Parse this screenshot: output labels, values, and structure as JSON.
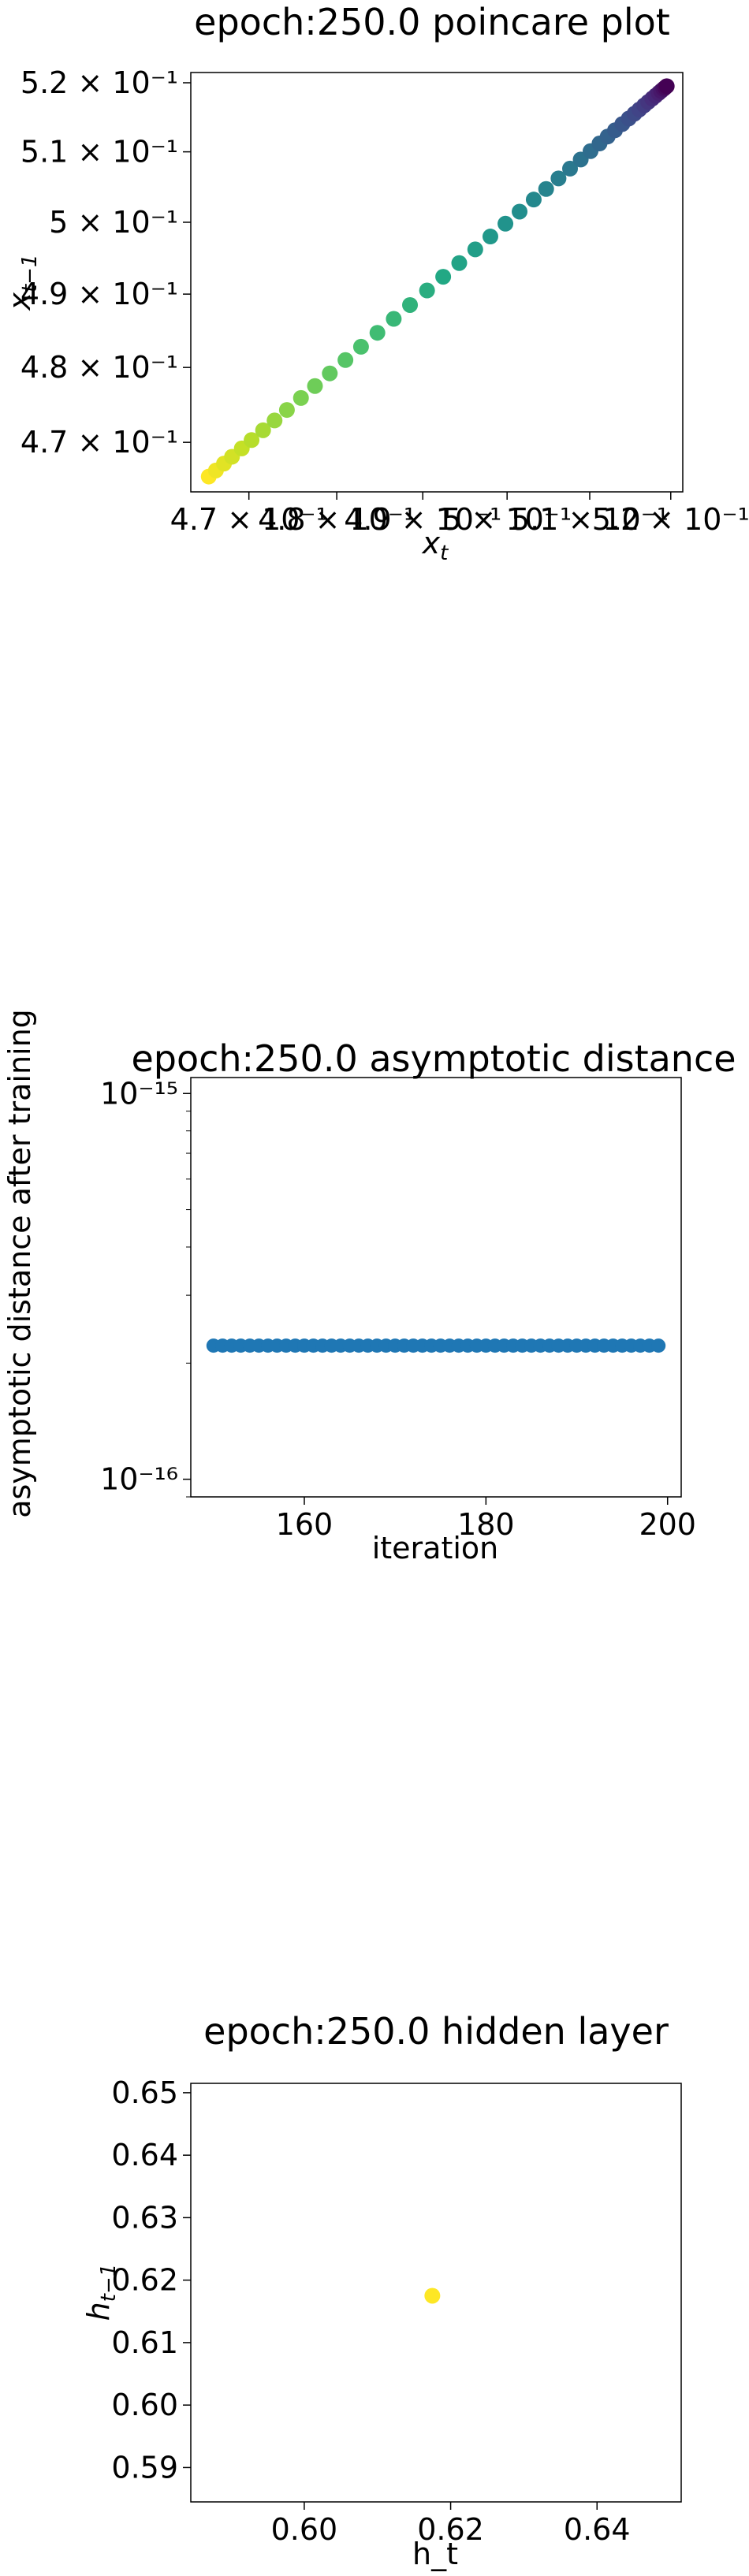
{
  "chart_data": [
    {
      "type": "scatter",
      "title": "epoch:250.0 poincare plot",
      "xlabel": "x_t",
      "ylabel": "x_{t-1}",
      "xscale": "log",
      "yscale": "log",
      "xlim": [
        0.4635,
        0.5215
      ],
      "ylim": [
        0.4635,
        0.5215
      ],
      "x_tick_labels": [
        "4.7 × 10⁻¹",
        "4.8 × 10⁻¹",
        "4.9 × 10⁻¹",
        "5 × 10⁻¹",
        "5.1 × 10⁻¹",
        "5.2 × 10⁻¹"
      ],
      "y_tick_labels": [
        "4.7 × 10⁻¹",
        "4.8 × 10⁻¹",
        "4.9 × 10⁻¹",
        "5 × 10⁻¹",
        "5.1 × 10⁻¹",
        "5.2 × 10⁻¹"
      ],
      "tick_values": [
        0.47,
        0.48,
        0.49,
        0.5,
        0.51,
        0.52
      ],
      "colormap": "viridis (reversed along the diagonal: yellow at low values, purple at high values)",
      "points": [
        {
          "x": 0.4655,
          "y": 0.4655
        },
        {
          "x": 0.4663,
          "y": 0.4663
        },
        {
          "x": 0.4672,
          "y": 0.4672
        },
        {
          "x": 0.4681,
          "y": 0.4681
        },
        {
          "x": 0.4692,
          "y": 0.4692
        },
        {
          "x": 0.4703,
          "y": 0.4703
        },
        {
          "x": 0.4716,
          "y": 0.4716
        },
        {
          "x": 0.4729,
          "y": 0.4729
        },
        {
          "x": 0.4743,
          "y": 0.4743
        },
        {
          "x": 0.4759,
          "y": 0.4759
        },
        {
          "x": 0.4775,
          "y": 0.4775
        },
        {
          "x": 0.4792,
          "y": 0.4792
        },
        {
          "x": 0.481,
          "y": 0.481
        },
        {
          "x": 0.4828,
          "y": 0.4828
        },
        {
          "x": 0.4847,
          "y": 0.4847
        },
        {
          "x": 0.4866,
          "y": 0.4866
        },
        {
          "x": 0.4885,
          "y": 0.4885
        },
        {
          "x": 0.4905,
          "y": 0.4905
        },
        {
          "x": 0.4924,
          "y": 0.4924
        },
        {
          "x": 0.4943,
          "y": 0.4943
        },
        {
          "x": 0.4962,
          "y": 0.4962
        },
        {
          "x": 0.498,
          "y": 0.498
        },
        {
          "x": 0.4998,
          "y": 0.4998
        },
        {
          "x": 0.5015,
          "y": 0.5015
        },
        {
          "x": 0.5032,
          "y": 0.5032
        },
        {
          "x": 0.5047,
          "y": 0.5047
        },
        {
          "x": 0.5062,
          "y": 0.5062
        },
        {
          "x": 0.5076,
          "y": 0.5076
        },
        {
          "x": 0.5089,
          "y": 0.5089
        },
        {
          "x": 0.5101,
          "y": 0.5101
        },
        {
          "x": 0.5112,
          "y": 0.5112
        },
        {
          "x": 0.5122,
          "y": 0.5122
        },
        {
          "x": 0.5131,
          "y": 0.5131
        },
        {
          "x": 0.514,
          "y": 0.514
        },
        {
          "x": 0.5148,
          "y": 0.5148
        },
        {
          "x": 0.5155,
          "y": 0.5155
        },
        {
          "x": 0.5161,
          "y": 0.5161
        },
        {
          "x": 0.5167,
          "y": 0.5167
        },
        {
          "x": 0.5172,
          "y": 0.5172
        },
        {
          "x": 0.5177,
          "y": 0.5177
        },
        {
          "x": 0.5181,
          "y": 0.5181
        },
        {
          "x": 0.5185,
          "y": 0.5185
        },
        {
          "x": 0.5188,
          "y": 0.5188
        },
        {
          "x": 0.5191,
          "y": 0.5191
        },
        {
          "x": 0.5193,
          "y": 0.5193
        },
        {
          "x": 0.5195,
          "y": 0.5195
        }
      ]
    },
    {
      "type": "scatter",
      "title": "epoch:250.0 asymptotic distance",
      "xlabel": "iteration",
      "ylabel": "asymptotic distance after training",
      "yscale": "log",
      "xlim": [
        147.5,
        201.5
      ],
      "ylim": [
        9e-17,
        1.1e-15
      ],
      "x_ticks": [
        160,
        180,
        200
      ],
      "x_tick_labels": [
        "160",
        "180",
        "200"
      ],
      "y_ticks": [
        1e-16,
        1e-15
      ],
      "y_tick_labels": [
        "10⁻¹⁶",
        "10⁻¹⁵"
      ],
      "color": "#1f77b4",
      "x": [
        150,
        151,
        152,
        153,
        154,
        155,
        156,
        157,
        158,
        159,
        160,
        161,
        162,
        163,
        164,
        165,
        166,
        167,
        168,
        169,
        170,
        171,
        172,
        173,
        174,
        175,
        176,
        177,
        178,
        179,
        180,
        181,
        182,
        183,
        184,
        185,
        186,
        187,
        188,
        189,
        190,
        191,
        192,
        193,
        194,
        195,
        196,
        197,
        198,
        199
      ],
      "y_constant": 2.22e-16
    },
    {
      "type": "scatter",
      "title": "epoch:250.0 hidden layer",
      "xlabel": "h_t",
      "ylabel": "h_{t-1}",
      "xlim": [
        0.5845,
        0.6515
      ],
      "ylim": [
        0.5845,
        0.6515
      ],
      "x_ticks": [
        0.6,
        0.62,
        0.64
      ],
      "x_tick_labels": [
        "0.60",
        "0.62",
        "0.64"
      ],
      "y_ticks": [
        0.59,
        0.6,
        0.61,
        0.62,
        0.63,
        0.64,
        0.65
      ],
      "y_tick_labels": [
        "0.59",
        "0.60",
        "0.61",
        "0.62",
        "0.63",
        "0.64",
        "0.65"
      ],
      "color": "#fde725",
      "points": [
        {
          "x": 0.6175,
          "y": 0.6175
        }
      ]
    }
  ]
}
